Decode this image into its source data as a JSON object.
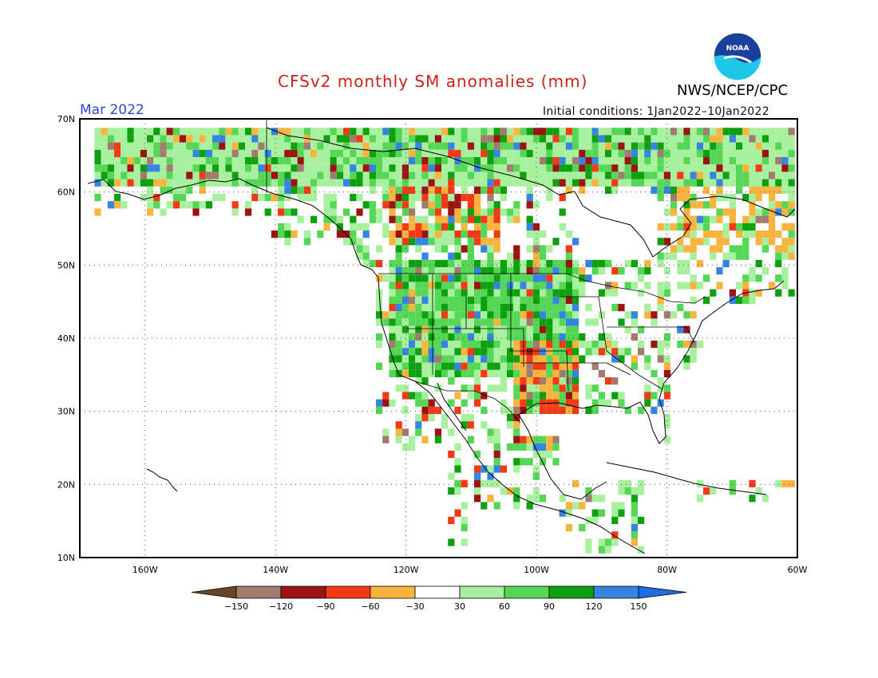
{
  "title": "CFSv2 monthly SM anomalies (mm)",
  "agency": "NWS/NCEP/CPC",
  "logo_text": "NOAA",
  "month": "Mar 2022",
  "initial_conditions": "Initial conditions: 1Jan2022–10Jan2022",
  "lat_labels": [
    "70N",
    "60N",
    "50N",
    "40N",
    "30N",
    "20N",
    "10N"
  ],
  "lon_labels": [
    "160W",
    "140W",
    "120W",
    "100W",
    "80W",
    "60W"
  ],
  "legend": {
    "tick_labels": [
      "−150",
      "−120",
      "−90",
      "−60",
      "−30",
      "30",
      "60",
      "90",
      "120",
      "150"
    ],
    "colors": [
      "#6b4526",
      "#a07b6e",
      "#9b1313",
      "#f23b16",
      "#f9b43f",
      "#ffffff",
      "#a7f09e",
      "#55d655",
      "#0fa00f",
      "#3585e0",
      "#1f6de0"
    ]
  }
}
